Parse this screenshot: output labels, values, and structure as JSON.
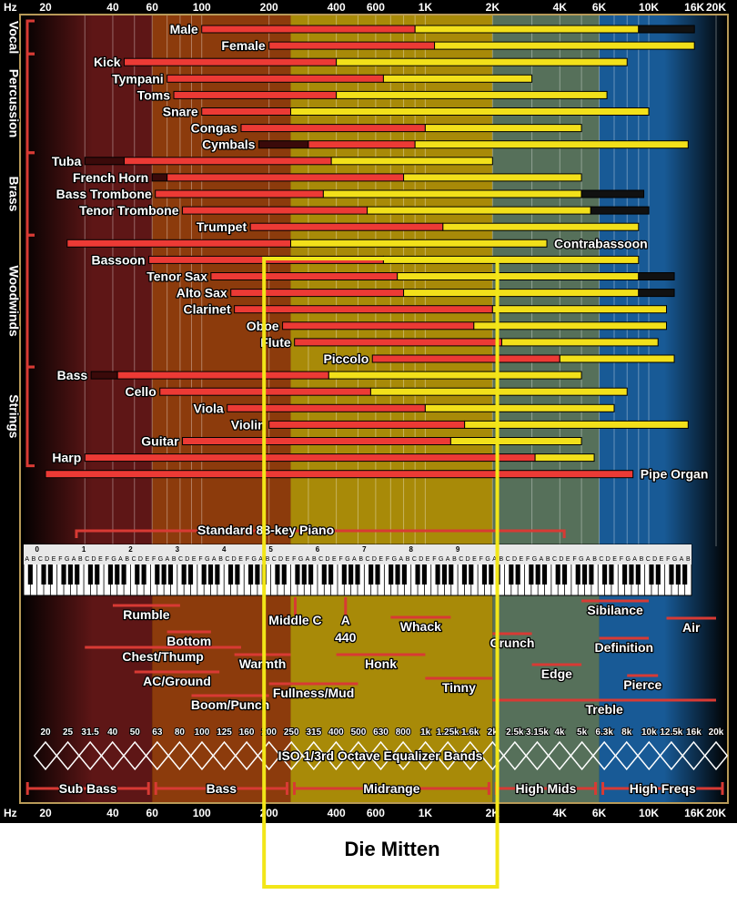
{
  "chart_data": {
    "type": "range-bar",
    "title": "",
    "axis_unit": "Hz",
    "xscale": "log",
    "xlim": [
      16,
      24000
    ],
    "ticks": [
      {
        "label": "20",
        "value": 20
      },
      {
        "label": "40",
        "value": 40
      },
      {
        "label": "60",
        "value": 60
      },
      {
        "label": "100",
        "value": 100
      },
      {
        "label": "200",
        "value": 200
      },
      {
        "label": "400",
        "value": 400
      },
      {
        "label": "600",
        "value": 600
      },
      {
        "label": "1K",
        "value": 1000
      },
      {
        "label": "2K",
        "value": 2000
      },
      {
        "label": "4K",
        "value": 4000
      },
      {
        "label": "6K",
        "value": 6000
      },
      {
        "label": "10K",
        "value": 10000
      },
      {
        "label": "16K",
        "value": 16000
      },
      {
        "label": "20K",
        "value": 20000
      }
    ],
    "zones": [
      {
        "name": "Sub Bass",
        "start": 16,
        "end": 60,
        "color": "#5e1616"
      },
      {
        "name": "Bass",
        "start": 60,
        "end": 250,
        "color": "#8c3b0c"
      },
      {
        "name": "Midrange",
        "start": 250,
        "end": 2000,
        "color": "#a88a08"
      },
      {
        "name": "High Mids",
        "start": 2000,
        "end": 6000,
        "color": "#56705a"
      },
      {
        "name": "High Freqs",
        "start": 6000,
        "end": 24000,
        "color": "#185a96"
      }
    ],
    "groups": [
      {
        "name": "Vocal",
        "first": "Male",
        "last": "Female"
      },
      {
        "name": "Percussion",
        "first": "Kick",
        "last": "Cymbals"
      },
      {
        "name": "Brass",
        "first": "Tuba",
        "last": "Trumpet"
      },
      {
        "name": "Woodwinds",
        "first": "Contrabassoon",
        "last": "Piccolo"
      },
      {
        "name": "Strings",
        "first": "Bass",
        "last": "Harp"
      }
    ],
    "instruments": [
      {
        "name": "Male",
        "fund": [
          100,
          900
        ],
        "harm": [
          900,
          9000
        ],
        "ext": [
          9000,
          16000
        ],
        "label_side": "left"
      },
      {
        "name": "Female",
        "fund": [
          200,
          1100
        ],
        "harm": [
          1100,
          16000
        ],
        "label_side": "left"
      },
      {
        "name": "Kick",
        "fund": [
          45,
          400
        ],
        "harm": [
          400,
          8000
        ],
        "label_side": "left"
      },
      {
        "name": "Tympani",
        "fund": [
          70,
          650
        ],
        "harm": [
          650,
          3000
        ],
        "label_side": "left"
      },
      {
        "name": "Toms",
        "fund": [
          75,
          400
        ],
        "harm": [
          400,
          6500
        ],
        "label_side": "left"
      },
      {
        "name": "Snare",
        "fund": [
          100,
          250
        ],
        "harm": [
          250,
          10000
        ],
        "label_side": "left"
      },
      {
        "name": "Congas",
        "fund": [
          150,
          1000
        ],
        "harm": [
          1000,
          5000
        ],
        "label_side": "left"
      },
      {
        "name": "Cymbals",
        "sub": [
          180,
          300
        ],
        "fund": [
          300,
          900
        ],
        "harm": [
          900,
          15000
        ],
        "label_side": "left"
      },
      {
        "name": "Tuba",
        "sub": [
          30,
          45
        ],
        "fund": [
          45,
          380
        ],
        "harm": [
          380,
          2000
        ],
        "label_side": "left"
      },
      {
        "name": "French Horn",
        "sub": [
          60,
          70
        ],
        "fund": [
          70,
          800
        ],
        "harm": [
          800,
          5000
        ],
        "label_side": "left"
      },
      {
        "name": "Bass Trombone",
        "fund": [
          62,
          350
        ],
        "harm": [
          350,
          5000
        ],
        "ext": [
          5000,
          9500
        ],
        "label_side": "left"
      },
      {
        "name": "Tenor Trombone",
        "fund": [
          82,
          550
        ],
        "harm": [
          550,
          5500
        ],
        "ext": [
          5500,
          10000
        ],
        "label_side": "left"
      },
      {
        "name": "Trumpet",
        "fund": [
          165,
          1200
        ],
        "harm": [
          1200,
          9000
        ],
        "label_side": "left"
      },
      {
        "name": "Contrabassoon",
        "fund": [
          25,
          250
        ],
        "harm": [
          250,
          3500
        ],
        "label_side": "right"
      },
      {
        "name": "Bassoon",
        "fund": [
          58,
          650
        ],
        "harm": [
          650,
          9000
        ],
        "label_side": "left"
      },
      {
        "name": "Tenor Sax",
        "fund": [
          110,
          750
        ],
        "harm": [
          750,
          9000
        ],
        "ext": [
          9000,
          13000
        ],
        "label_side": "left"
      },
      {
        "name": "Alto Sax",
        "fund": [
          135,
          800
        ],
        "harm": [
          800,
          9000
        ],
        "ext": [
          9000,
          13000
        ],
        "label_side": "left"
      },
      {
        "name": "Clarinet",
        "fund": [
          140,
          2000
        ],
        "harm": [
          2000,
          12000
        ],
        "label_side": "left"
      },
      {
        "name": "Oboe",
        "fund": [
          230,
          1650
        ],
        "harm": [
          1650,
          12000
        ],
        "label_side": "left"
      },
      {
        "name": "Flute",
        "fund": [
          260,
          2200
        ],
        "harm": [
          2200,
          11000
        ],
        "label_side": "left"
      },
      {
        "name": "Piccolo",
        "fund": [
          580,
          4000
        ],
        "harm": [
          4000,
          13000
        ],
        "label_side": "left"
      },
      {
        "name": "Bass",
        "sub": [
          32,
          42
        ],
        "fund": [
          42,
          370
        ],
        "harm": [
          370,
          5000
        ],
        "label_side": "left"
      },
      {
        "name": "Cello",
        "fund": [
          65,
          570
        ],
        "harm": [
          570,
          8000
        ],
        "label_side": "left"
      },
      {
        "name": "Viola",
        "fund": [
          130,
          1000
        ],
        "harm": [
          1000,
          7000
        ],
        "label_side": "left"
      },
      {
        "name": "Violin",
        "fund": [
          200,
          1500
        ],
        "harm": [
          1500,
          15000
        ],
        "label_side": "left"
      },
      {
        "name": "Guitar",
        "fund": [
          82,
          1300
        ],
        "harm": [
          1300,
          5000
        ],
        "label_side": "left"
      },
      {
        "name": "Harp",
        "fund": [
          30,
          3100
        ],
        "harm": [
          3100,
          5700
        ],
        "label_side": "left"
      },
      {
        "name": "Pipe Organ",
        "fund": [
          20,
          8500
        ],
        "label_side": "right"
      }
    ],
    "piano": {
      "label": "Standard 88-key Piano",
      "start": 27.5,
      "end": 4186,
      "octave_numbers": [
        "0",
        "1",
        "2",
        "3",
        "4",
        "5",
        "6",
        "7",
        "8",
        "9"
      ],
      "octave_notes": "C D E F G A B"
    },
    "descriptors": [
      {
        "name": "Rumble",
        "start": 40,
        "end": 80
      },
      {
        "name": "Bottom",
        "start": 70,
        "end": 110
      },
      {
        "name": "Chest/Thump",
        "start": 30,
        "end": 150
      },
      {
        "name": "AC/Ground",
        "start": 50,
        "end": 120
      },
      {
        "name": "Warmth",
        "start": 140,
        "end": 250
      },
      {
        "name": "Boom/Punch",
        "start": 90,
        "end": 200
      },
      {
        "name": "Middle C",
        "start": 262,
        "end": 262
      },
      {
        "name": "A 440",
        "start": 440,
        "end": 440
      },
      {
        "name": "Fullness/Mud",
        "start": 200,
        "end": 500
      },
      {
        "name": "Honk",
        "start": 400,
        "end": 1000
      },
      {
        "name": "Whack",
        "start": 700,
        "end": 1300
      },
      {
        "name": "Tinny",
        "start": 1000,
        "end": 2000
      },
      {
        "name": "Crunch",
        "start": 2000,
        "end": 3000
      },
      {
        "name": "Edge",
        "start": 3000,
        "end": 5000
      },
      {
        "name": "Sibilance",
        "start": 5000,
        "end": 10000
      },
      {
        "name": "Definition",
        "start": 6000,
        "end": 10000
      },
      {
        "name": "Pierce",
        "start": 8000,
        "end": 11000
      },
      {
        "name": "Air",
        "start": 12000,
        "end": 20000
      },
      {
        "name": "Treble",
        "start": 2000,
        "end": 20000
      }
    ],
    "eq_bands": [
      "20",
      "25",
      "31.5",
      "40",
      "50",
      "63",
      "80",
      "100",
      "125",
      "160",
      "200",
      "250",
      "315",
      "400",
      "500",
      "630",
      "800",
      "1k",
      "1.25k",
      "1.6k",
      "2k",
      "2.5k",
      "3.15k",
      "4k",
      "5k",
      "6.3k",
      "8k",
      "10k",
      "12.5k",
      "16k",
      "20k"
    ],
    "eq_label": "ISO 1/3rd Octave Equalizer Bands",
    "highlight": {
      "start": 190,
      "end": 2100,
      "color": "#f2e618"
    }
  },
  "caption": "Die Mitten"
}
